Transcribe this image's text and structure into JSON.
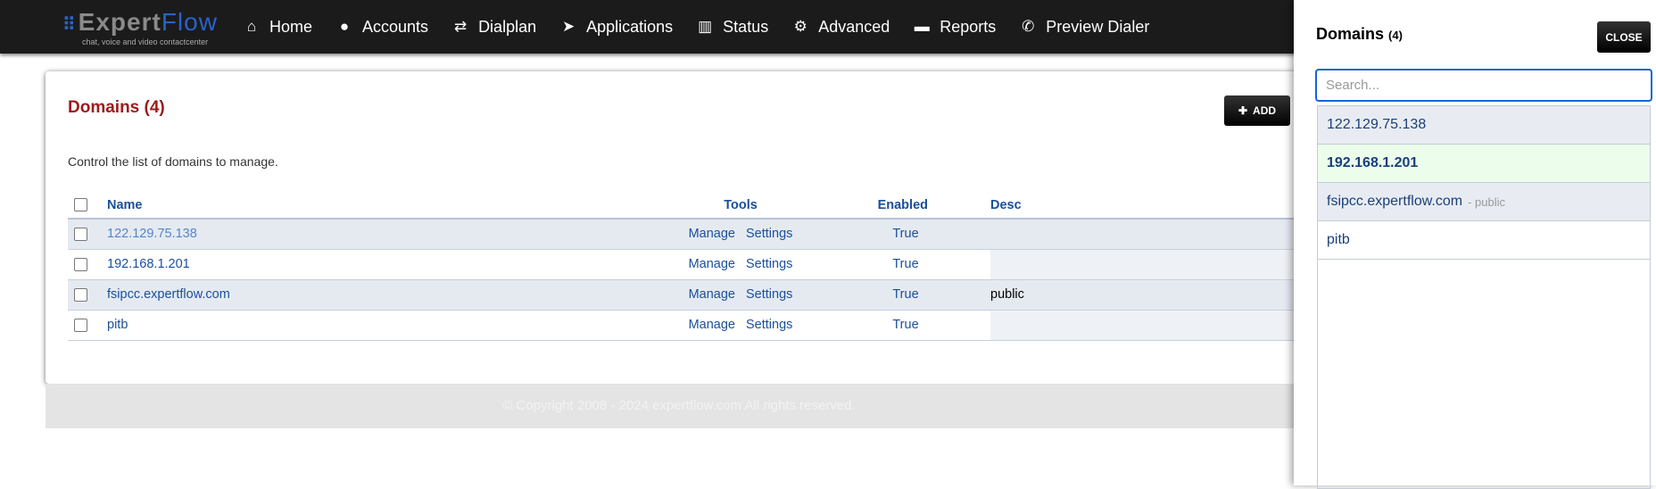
{
  "navbar": {
    "logo_main_left": "Expert",
    "logo_main_right": "Flow",
    "logo_tagline": "chat, voice and video contactcenter",
    "items": [
      {
        "label": "Home",
        "icon": "home-icon"
      },
      {
        "label": "Accounts",
        "icon": "user-icon"
      },
      {
        "label": "Dialplan",
        "icon": "exchange-icon"
      },
      {
        "label": "Applications",
        "icon": "paper-plane-icon"
      },
      {
        "label": "Status",
        "icon": "bar-chart-icon"
      },
      {
        "label": "Advanced",
        "icon": "gear-icon"
      },
      {
        "label": "Reports",
        "icon": "card-icon"
      },
      {
        "label": "Preview Dialer",
        "icon": "phone-icon"
      }
    ]
  },
  "main": {
    "title": "Domains (4)",
    "add_label": "ADD",
    "description": "Control the list of domains to manage.",
    "columns": {
      "name": "Name",
      "tools": "Tools",
      "enabled": "Enabled",
      "description": "Desc"
    },
    "rows": [
      {
        "name": "122.129.75.138",
        "manage": "Manage",
        "settings": "Settings",
        "enabled": "True",
        "description": ""
      },
      {
        "name": "192.168.1.201",
        "manage": "Manage",
        "settings": "Settings",
        "enabled": "True",
        "description": ""
      },
      {
        "name": "fsipcc.expertflow.com",
        "manage": "Manage",
        "settings": "Settings",
        "enabled": "True",
        "description": "public"
      },
      {
        "name": "pitb",
        "manage": "Manage",
        "settings": "Settings",
        "enabled": "True",
        "description": ""
      }
    ]
  },
  "footer": {
    "text": "© Copyright 2008 - 2024 expertflow.com All rights reserved."
  },
  "panel": {
    "title": "Domains",
    "count": "(4)",
    "close_label": "CLOSE",
    "search_placeholder": "Search...",
    "items": [
      {
        "name": "122.129.75.138",
        "sub": ""
      },
      {
        "name": "192.168.1.201",
        "sub": ""
      },
      {
        "name": "fsipcc.expertflow.com",
        "sub": "- public"
      },
      {
        "name": "pitb",
        "sub": ""
      }
    ]
  },
  "colors": {
    "title_red": "#9b1c1c",
    "link_blue": "#1a4f9c",
    "selected_bg": "#ecfdec",
    "focus_blue": "#1565d8"
  }
}
